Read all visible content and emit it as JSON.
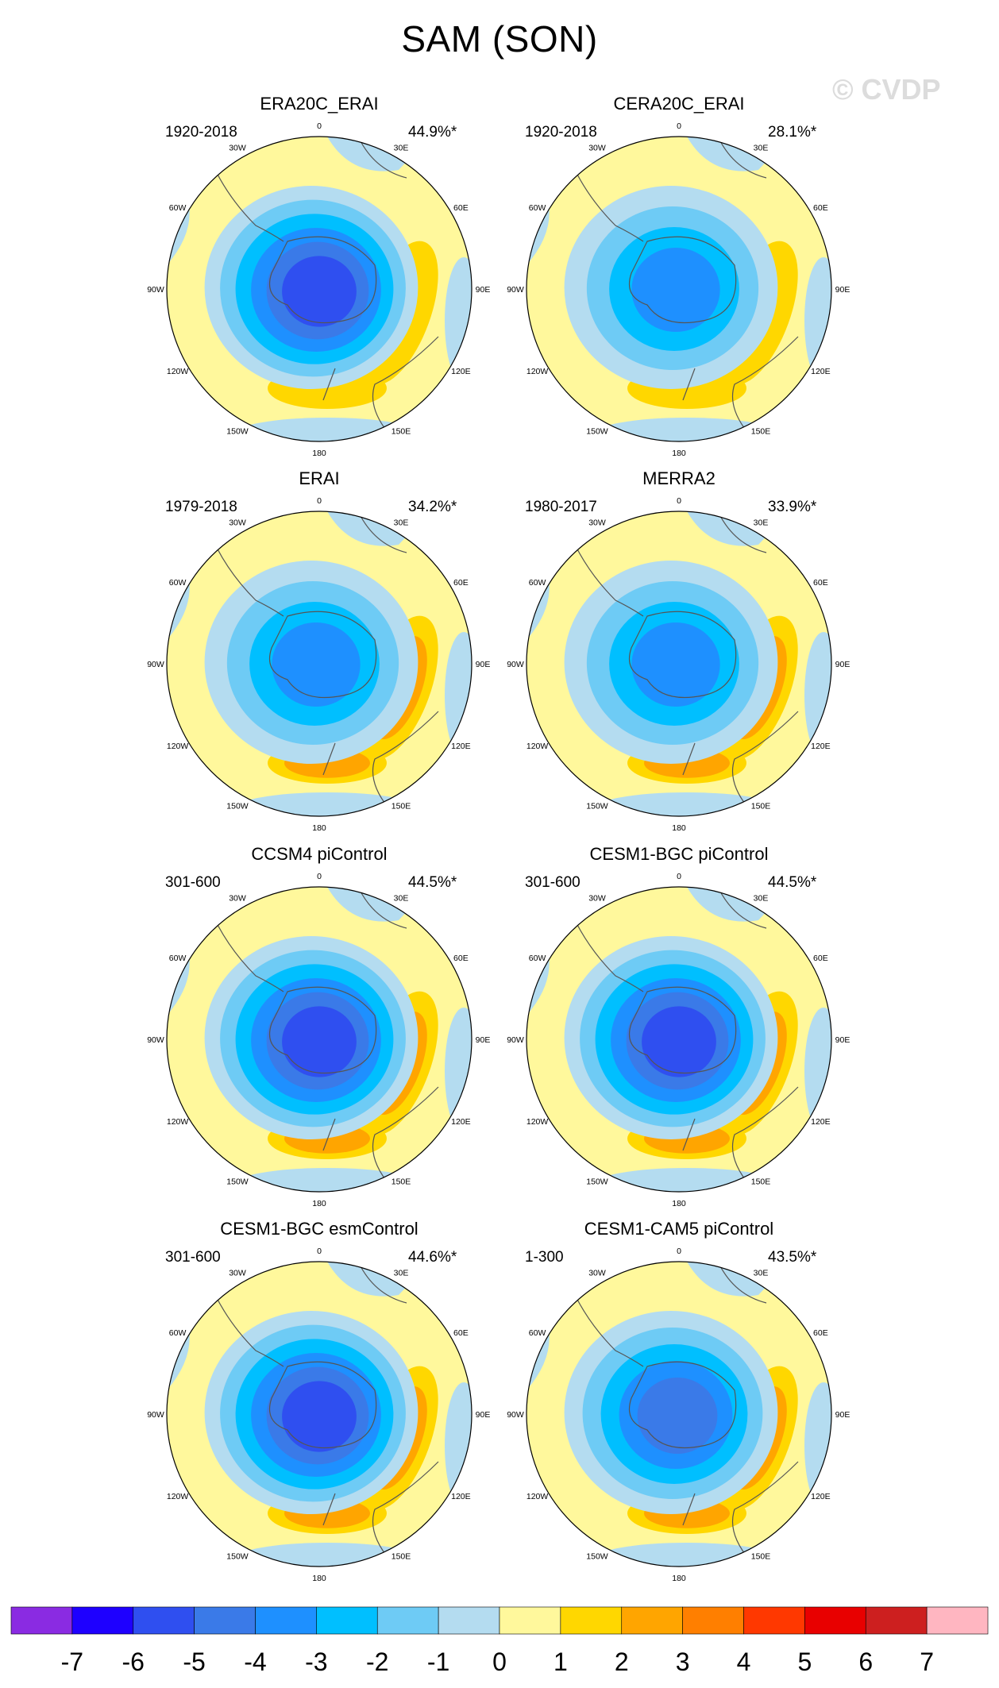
{
  "main_title": "SAM (SON)",
  "watermark": "© CVDP",
  "chart_data": {
    "type": "heatmap",
    "title": "SAM (SON)",
    "projection": "south-polar-stereographic",
    "longitude_labels": [
      "0",
      "30E",
      "60E",
      "90E",
      "120E",
      "150E",
      "180",
      "150W",
      "120W",
      "90W",
      "60W",
      "30W"
    ],
    "panels": [
      {
        "title": "ERA20C_ERAI",
        "period": "1920-2018",
        "variance_explained": "44.9%*",
        "pattern": {
          "min": -6,
          "max": 2
        }
      },
      {
        "title": "CERA20C_ERAI",
        "period": "1920-2018",
        "variance_explained": "28.1%*",
        "pattern": {
          "min": -4,
          "max": 2
        }
      },
      {
        "title": "ERAI",
        "period": "1979-2018",
        "variance_explained": "34.2%*",
        "pattern": {
          "min": -4,
          "max": 3
        }
      },
      {
        "title": "MERRA2",
        "period": "1980-2017",
        "variance_explained": "33.9%*",
        "pattern": {
          "min": -4,
          "max": 3
        }
      },
      {
        "title": "CCSM4 piControl",
        "period": "301-600",
        "variance_explained": "44.5%*",
        "pattern": {
          "min": -6,
          "max": 3
        }
      },
      {
        "title": "CESM1-BGC piControl",
        "period": "301-600",
        "variance_explained": "44.5%*",
        "pattern": {
          "min": -6,
          "max": 3
        }
      },
      {
        "title": "CESM1-BGC esmControl",
        "period": "301-600",
        "variance_explained": "44.6%*",
        "pattern": {
          "min": -6,
          "max": 3
        }
      },
      {
        "title": "CESM1-CAM5 piControl",
        "period": "1-300",
        "variance_explained": "43.5%*",
        "pattern": {
          "min": -5,
          "max": 3
        }
      }
    ],
    "colorbar": {
      "labels": [
        "-7",
        "-6",
        "-5",
        "-4",
        "-3",
        "-2",
        "-1",
        "0",
        "1",
        "2",
        "3",
        "4",
        "5",
        "6",
        "7"
      ],
      "colors": [
        "#8a2be2",
        "#1e00ff",
        "#2f4ff0",
        "#3a7ae8",
        "#1e90ff",
        "#00bfff",
        "#6ecbf5",
        "#b4dcf0",
        "#fff89c",
        "#ffd700",
        "#ffa500",
        "#ff7f00",
        "#ff3800",
        "#e80000",
        "#cd1f1f",
        "#ffb6c1"
      ]
    }
  }
}
